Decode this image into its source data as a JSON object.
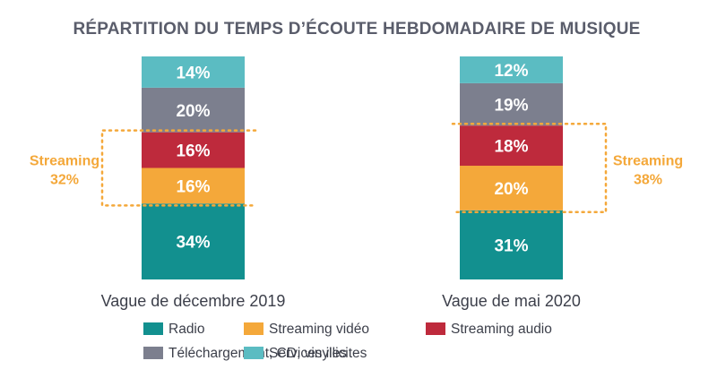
{
  "chart_data": {
    "type": "bar",
    "stacked": true,
    "normalized_percent": true,
    "title": "RÉPARTITION DU TEMPS D’ÉCOUTE HEBDOMADAIRE DE MUSIQUE",
    "categories": [
      "Vague de décembre 2019",
      "Vague de mai 2020"
    ],
    "series": [
      {
        "name": "Radio",
        "color": "#12908f",
        "values": [
          34,
          31
        ]
      },
      {
        "name": "Streaming vidéo",
        "color": "#f4a83a",
        "values": [
          16,
          20
        ]
      },
      {
        "name": "Streaming audio",
        "color": "#be2a3c",
        "values": [
          16,
          18
        ]
      },
      {
        "name": "Téléchargement, CD, vinyles",
        "color": "#7c7f8e",
        "values": [
          20,
          19
        ]
      },
      {
        "name": "Services illicites",
        "color": "#5bbcc2",
        "values": [
          14,
          12
        ]
      }
    ],
    "value_suffix": "%",
    "groups": [
      {
        "label_line1": "Streaming",
        "label_line2": [
          "32%",
          "38%"
        ],
        "series": [
          "Streaming vidéo",
          "Streaming audio"
        ]
      }
    ],
    "legend": {
      "placement": "bottom",
      "rows": [
        [
          "Radio",
          "Streaming vidéo",
          "Streaming audio"
        ],
        [
          "Téléchargement, CD, vinyles",
          "Services illicites"
        ]
      ]
    },
    "xlabel": "",
    "ylabel": ""
  }
}
